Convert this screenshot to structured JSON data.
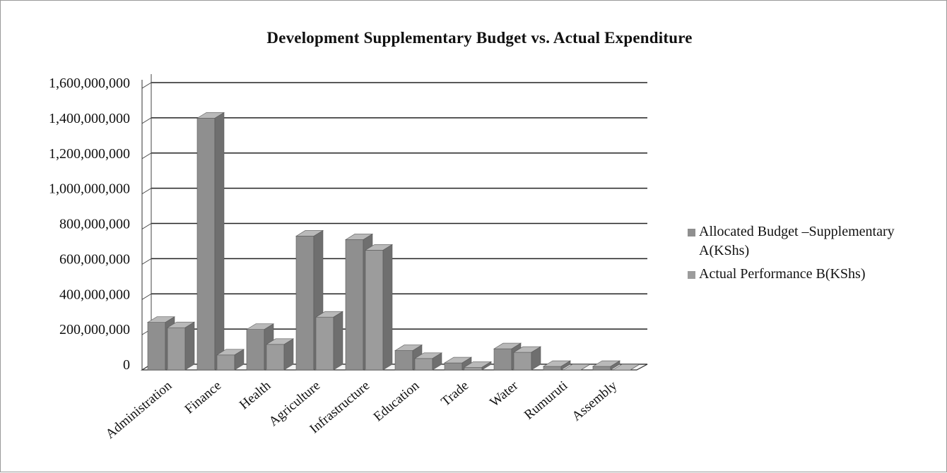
{
  "chart_data": {
    "type": "bar",
    "title": "Development Supplementary Budget vs. Actual Expenditure",
    "categories": [
      "Administration",
      "Finance",
      "Health",
      "Agriculture",
      "Infrastructure",
      "Education",
      "Trade",
      "Water",
      "Rumuruti",
      "Assembly"
    ],
    "series": [
      {
        "name": "Allocated Budget –Supplementary A(KShs)",
        "values": [
          270000000,
          1430000000,
          230000000,
          760000000,
          740000000,
          110000000,
          40000000,
          120000000,
          20000000,
          20000000
        ],
        "color": "#8f8f8f"
      },
      {
        "name": "Actual Performance B(KShs)",
        "values": [
          240000000,
          85000000,
          145000000,
          300000000,
          680000000,
          65000000,
          15000000,
          100000000,
          0,
          0
        ],
        "color": "#9c9c9c"
      }
    ],
    "yticks": [
      "0",
      "200,000,000",
      "400,000,000",
      "600,000,000",
      "800,000,000",
      "1,000,000,000",
      "1,200,000,000",
      "1,400,000,000",
      "1,600,000,000"
    ],
    "ylim": [
      0,
      1600000000
    ],
    "grid": true,
    "legend_position": "right",
    "style": "3d-column"
  }
}
